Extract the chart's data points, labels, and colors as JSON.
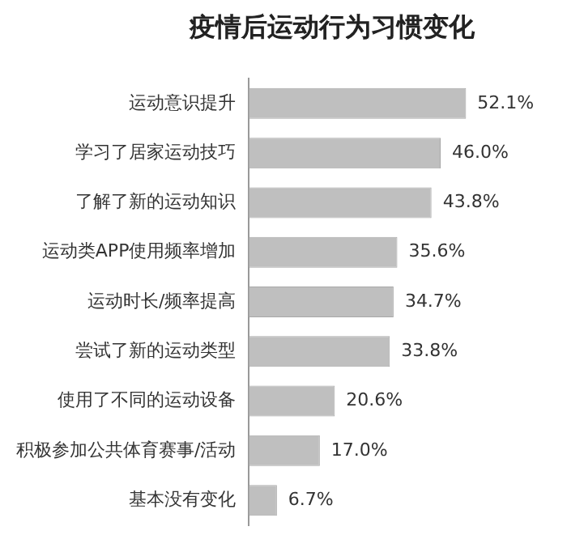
{
  "chart_data": {
    "type": "bar",
    "orientation": "horizontal",
    "title": "疫情后运动行为习惯变化",
    "categories": [
      "运动意识提升",
      "学习了居家运动技巧",
      "了解了新的运动知识",
      "运动类APP使用频率增加",
      "运动时长/频率提高",
      "尝试了新的运动类型",
      "使用了不同的运动设备",
      "积极参加公共体育赛事/活动",
      "基本没有变化"
    ],
    "values": [
      52.1,
      46.0,
      43.8,
      35.6,
      34.7,
      33.8,
      20.6,
      17.0,
      6.7
    ],
    "value_labels": [
      "52.1%",
      "46.0%",
      "43.8%",
      "35.6%",
      "34.7%",
      "33.8%",
      "20.6%",
      "17.0%",
      "6.7%"
    ],
    "color": "#bfbfbf",
    "tick_labels": "y"
  }
}
